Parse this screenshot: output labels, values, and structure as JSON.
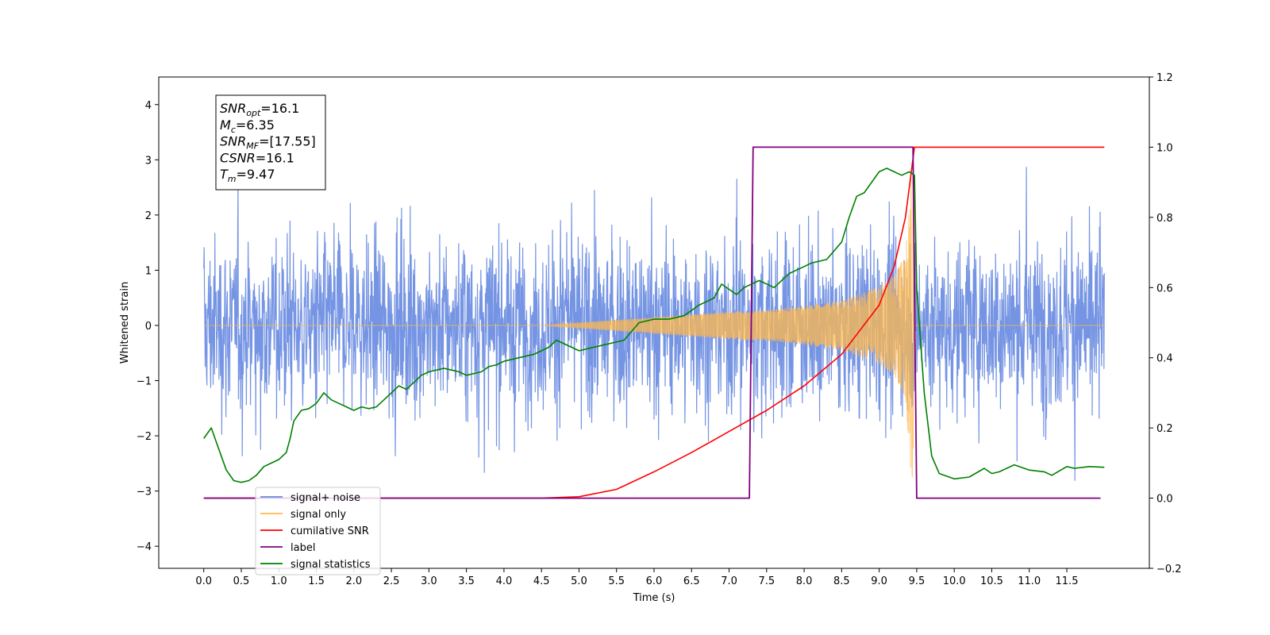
{
  "chart_data": {
    "type": "line",
    "title": "",
    "xlabel": "Time (s)",
    "ylabel_left": "Whitened strain",
    "ylabel_right": "",
    "xlim": [
      -0.6,
      12.6
    ],
    "ylim_left": [
      -4.4,
      4.5
    ],
    "ylim_right": [
      -0.2,
      1.2
    ],
    "x_ticks": [
      "0.0",
      "0.5",
      "1.0",
      "1.5",
      "2.0",
      "2.5",
      "3.0",
      "3.5",
      "4.0",
      "4.5",
      "5.0",
      "5.5",
      "6.0",
      "6.5",
      "7.0",
      "7.5",
      "8.0",
      "8.5",
      "9.0",
      "9.5",
      "10.0",
      "10.5",
      "11.0",
      "11.5"
    ],
    "y_ticks_left": [
      "−4",
      "−3",
      "−2",
      "−1",
      "0",
      "1",
      "2",
      "3",
      "4"
    ],
    "y_ticks_right": [
      "−0.2",
      "0.0",
      "0.2",
      "0.4",
      "0.6",
      "0.8",
      "1.0",
      "1.2"
    ],
    "grid": false,
    "legend_position": "lower-left",
    "info_box": {
      "lines": [
        {
          "sym": "SNR",
          "sub": "opt",
          "val": "=16.1"
        },
        {
          "sym": "M",
          "sub": "c",
          "val": "=6.35"
        },
        {
          "sym": "SNR",
          "sub": "MF",
          "val": "=[17.55]"
        },
        {
          "sym": "CSNR",
          "sub": "",
          "val": "=16.1"
        },
        {
          "sym": "T",
          "sub": "m",
          "val": "=9.47"
        }
      ]
    },
    "series": [
      {
        "name": "signal+ noise",
        "color": "#6688e0",
        "axis": "left",
        "style": "dense noise, roughly ±2.5 with spikes to ±4",
        "x_range": [
          0.0,
          12.0
        ],
        "amplitude_sd": 1.1
      },
      {
        "name": "signal only",
        "color": "#ffb84d",
        "axis": "left",
        "style": "chirp",
        "chirp_end": 9.47,
        "envelope": [
          [
            0.0,
            0.0
          ],
          [
            4.5,
            0.0
          ],
          [
            5.5,
            0.1
          ],
          [
            6.0,
            0.15
          ],
          [
            6.5,
            0.2
          ],
          [
            7.0,
            0.25
          ],
          [
            7.5,
            0.28
          ],
          [
            8.0,
            0.35
          ],
          [
            8.5,
            0.45
          ],
          [
            9.0,
            0.7
          ],
          [
            9.2,
            0.9
          ],
          [
            9.35,
            1.3
          ],
          [
            9.45,
            3.2
          ],
          [
            9.47,
            0.0
          ],
          [
            12.0,
            0.0
          ]
        ]
      },
      {
        "name": "cumilative SNR",
        "color": "#ff0000",
        "axis": "right",
        "points": [
          [
            0.0,
            0.0
          ],
          [
            4.5,
            0.0
          ],
          [
            5.0,
            0.004
          ],
          [
            5.5,
            0.025
          ],
          [
            6.0,
            0.075
          ],
          [
            6.5,
            0.13
          ],
          [
            7.0,
            0.19
          ],
          [
            7.5,
            0.25
          ],
          [
            8.0,
            0.32
          ],
          [
            8.5,
            0.41
          ],
          [
            9.0,
            0.55
          ],
          [
            9.2,
            0.66
          ],
          [
            9.35,
            0.8
          ],
          [
            9.47,
            1.0
          ],
          [
            12.0,
            1.0
          ]
        ]
      },
      {
        "name": "label",
        "color": "#800080",
        "axis": "right",
        "points": [
          [
            0.0,
            0.0
          ],
          [
            7.27,
            0.0
          ],
          [
            7.32,
            1.0
          ],
          [
            9.45,
            1.0
          ],
          [
            9.5,
            0.0
          ],
          [
            11.95,
            0.0
          ]
        ]
      },
      {
        "name": "signal statistics",
        "color": "#008000",
        "axis": "right",
        "points": [
          [
            0.0,
            0.17
          ],
          [
            0.1,
            0.2
          ],
          [
            0.2,
            0.14
          ],
          [
            0.3,
            0.08
          ],
          [
            0.4,
            0.05
          ],
          [
            0.5,
            0.045
          ],
          [
            0.6,
            0.05
          ],
          [
            0.7,
            0.065
          ],
          [
            0.8,
            0.09
          ],
          [
            0.9,
            0.1
          ],
          [
            1.0,
            0.11
          ],
          [
            1.1,
            0.13
          ],
          [
            1.15,
            0.17
          ],
          [
            1.2,
            0.22
          ],
          [
            1.3,
            0.25
          ],
          [
            1.4,
            0.255
          ],
          [
            1.5,
            0.27
          ],
          [
            1.6,
            0.3
          ],
          [
            1.7,
            0.28
          ],
          [
            1.8,
            0.27
          ],
          [
            1.9,
            0.26
          ],
          [
            2.0,
            0.25
          ],
          [
            2.1,
            0.26
          ],
          [
            2.2,
            0.255
          ],
          [
            2.3,
            0.26
          ],
          [
            2.4,
            0.28
          ],
          [
            2.5,
            0.3
          ],
          [
            2.6,
            0.32
          ],
          [
            2.7,
            0.31
          ],
          [
            2.8,
            0.33
          ],
          [
            2.9,
            0.35
          ],
          [
            3.0,
            0.36
          ],
          [
            3.2,
            0.37
          ],
          [
            3.3,
            0.365
          ],
          [
            3.4,
            0.36
          ],
          [
            3.5,
            0.35
          ],
          [
            3.7,
            0.36
          ],
          [
            3.8,
            0.375
          ],
          [
            3.9,
            0.38
          ],
          [
            4.0,
            0.39
          ],
          [
            4.2,
            0.4
          ],
          [
            4.4,
            0.41
          ],
          [
            4.5,
            0.42
          ],
          [
            4.6,
            0.43
          ],
          [
            4.7,
            0.45
          ],
          [
            4.8,
            0.44
          ],
          [
            5.0,
            0.42
          ],
          [
            5.2,
            0.43
          ],
          [
            5.4,
            0.44
          ],
          [
            5.6,
            0.45
          ],
          [
            5.8,
            0.5
          ],
          [
            6.0,
            0.51
          ],
          [
            6.2,
            0.51
          ],
          [
            6.4,
            0.52
          ],
          [
            6.6,
            0.55
          ],
          [
            6.8,
            0.57
          ],
          [
            6.9,
            0.61
          ],
          [
            7.1,
            0.58
          ],
          [
            7.2,
            0.6
          ],
          [
            7.4,
            0.62
          ],
          [
            7.6,
            0.6
          ],
          [
            7.8,
            0.64
          ],
          [
            8.0,
            0.66
          ],
          [
            8.1,
            0.67
          ],
          [
            8.3,
            0.68
          ],
          [
            8.5,
            0.73
          ],
          [
            8.6,
            0.8
          ],
          [
            8.7,
            0.86
          ],
          [
            8.8,
            0.87
          ],
          [
            8.9,
            0.9
          ],
          [
            9.0,
            0.93
          ],
          [
            9.1,
            0.94
          ],
          [
            9.2,
            0.93
          ],
          [
            9.3,
            0.92
          ],
          [
            9.4,
            0.93
          ],
          [
            9.47,
            0.92
          ],
          [
            9.5,
            0.6
          ],
          [
            9.6,
            0.3
          ],
          [
            9.7,
            0.12
          ],
          [
            9.8,
            0.07
          ],
          [
            10.0,
            0.055
          ],
          [
            10.2,
            0.06
          ],
          [
            10.4,
            0.085
          ],
          [
            10.5,
            0.07
          ],
          [
            10.6,
            0.075
          ],
          [
            10.8,
            0.095
          ],
          [
            11.0,
            0.08
          ],
          [
            11.2,
            0.075
          ],
          [
            11.3,
            0.065
          ],
          [
            11.5,
            0.09
          ],
          [
            11.6,
            0.085
          ],
          [
            11.8,
            0.09
          ],
          [
            12.0,
            0.088
          ]
        ]
      }
    ],
    "legend_entries": [
      {
        "label": "signal+ noise",
        "color": "#6688e0"
      },
      {
        "label": "signal only",
        "color": "#ffb84d"
      },
      {
        "label": "cumilative SNR",
        "color": "#ff0000"
      },
      {
        "label": "label",
        "color": "#800080"
      },
      {
        "label": "signal statistics",
        "color": "#008000"
      }
    ]
  }
}
